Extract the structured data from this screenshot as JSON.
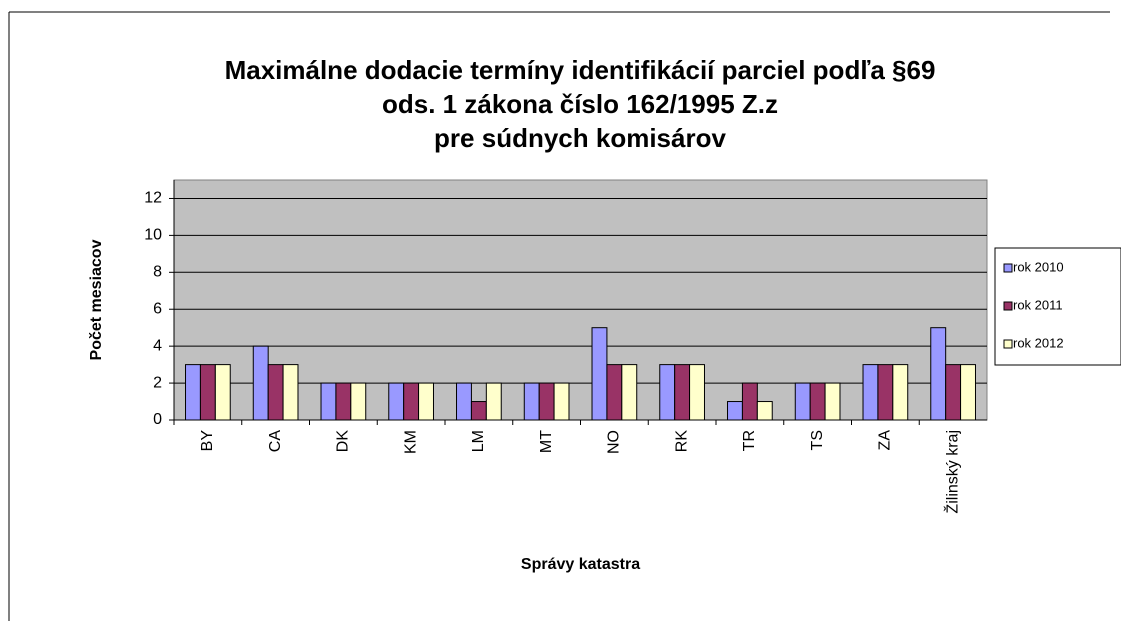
{
  "chart_data": {
    "type": "bar",
    "title": [
      "Maximálne dodacie termíny identifikácií parciel podľa §69",
      "ods. 1 zákona číslo 162/1995 Z.z",
      "pre súdnych komisárov"
    ],
    "x_label": "Správy katastra",
    "y_label": "Počet mesiacov",
    "categories": [
      "BY",
      "CA",
      "DK",
      "KM",
      "LM",
      "MT",
      "NO",
      "RK",
      "TR",
      "TS",
      "ZA",
      "Žilinský kraj"
    ],
    "series": [
      {
        "name": "rok 2010",
        "color": "#9999ff",
        "values": [
          3,
          4,
          2,
          2,
          2,
          2,
          5,
          3,
          1,
          2,
          3,
          5
        ]
      },
      {
        "name": "rok 2011",
        "color": "#993366",
        "values": [
          3,
          3,
          2,
          2,
          1,
          2,
          3,
          3,
          2,
          2,
          3,
          3
        ]
      },
      {
        "name": "rok 2012",
        "color": "#ffffcc",
        "values": [
          3,
          3,
          2,
          2,
          2,
          2,
          3,
          3,
          1,
          2,
          3,
          3
        ]
      }
    ],
    "ylim": [
      0,
      13
    ],
    "yticks": [
      0,
      2,
      4,
      6,
      8,
      10,
      12
    ],
    "grid": true,
    "legend": "right"
  }
}
